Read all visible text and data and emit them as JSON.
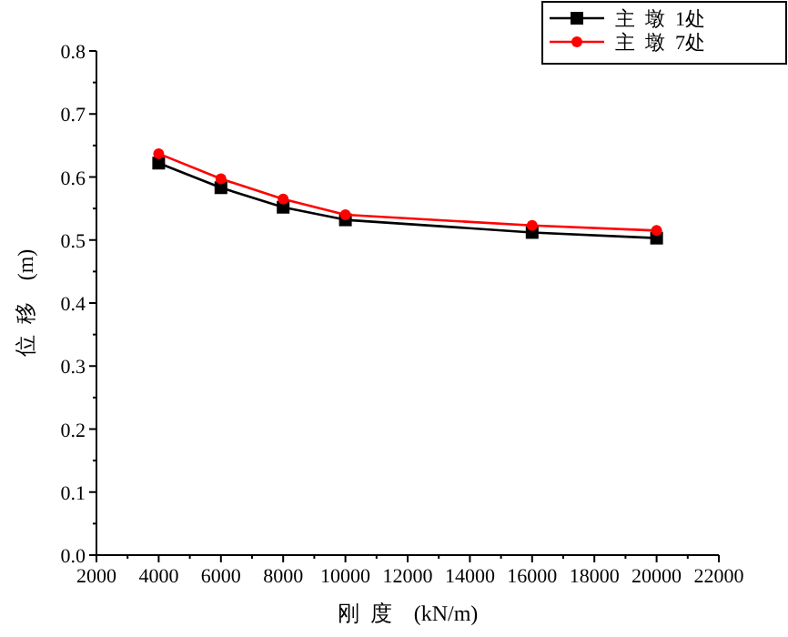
{
  "chart_data": {
    "type": "line",
    "xlabel": "刚  度    (kN/m)",
    "ylabel": "位  移    (m)",
    "x": [
      4000,
      6000,
      8000,
      10000,
      16000,
      20000
    ],
    "series": [
      {
        "name": "主  墩  1处",
        "color": "#000000",
        "marker": "square",
        "values": [
          0.622,
          0.583,
          0.552,
          0.532,
          0.512,
          0.503
        ]
      },
      {
        "name": "主  墩  7处",
        "color": "#ff0000",
        "marker": "circle",
        "values": [
          0.637,
          0.597,
          0.565,
          0.54,
          0.523,
          0.515
        ]
      }
    ],
    "xlim": [
      2000,
      22000
    ],
    "xticks": [
      2000,
      4000,
      6000,
      8000,
      10000,
      12000,
      14000,
      16000,
      18000,
      20000,
      22000
    ],
    "ylim": [
      0.0,
      0.8
    ],
    "yticks": [
      {
        "value": 0,
        "label": "0.0"
      },
      0.1,
      0.2,
      0.3,
      0.4,
      0.5,
      0.6,
      0.7,
      0.8
    ],
    "grid": false,
    "legend": "top right"
  }
}
